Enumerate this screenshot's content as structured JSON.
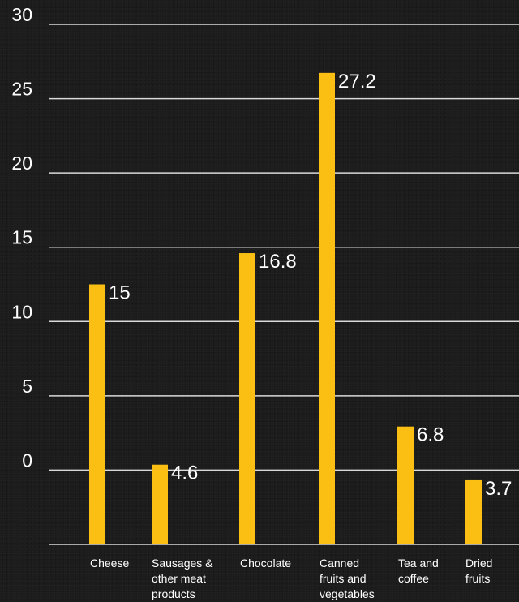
{
  "chart_data": {
    "type": "bar",
    "title": "",
    "xlabel": "",
    "ylabel": "",
    "categories": [
      "Cheese",
      "Sausages &\nother meat\nproducts",
      "Chocolate",
      "Canned\nfruits and\nvegetables",
      "Tea and\ncoffee",
      "Dried\nfruits"
    ],
    "values": [
      15,
      4.6,
      16.8,
      27.2,
      6.8,
      3.7
    ],
    "data_labels": [
      "15",
      "4.6",
      "16.8",
      "27.2",
      "6.8",
      "3.7"
    ],
    "yticks": [
      "30",
      "25",
      "20",
      "15",
      "10",
      "5",
      "0"
    ],
    "ylim": [
      0,
      30
    ],
    "grid": true,
    "legend": "none",
    "colors": {
      "bar": "#fbbf14",
      "grid": "#d9d9d9",
      "text": "#ffffff",
      "background": "#1c1c1c"
    }
  }
}
